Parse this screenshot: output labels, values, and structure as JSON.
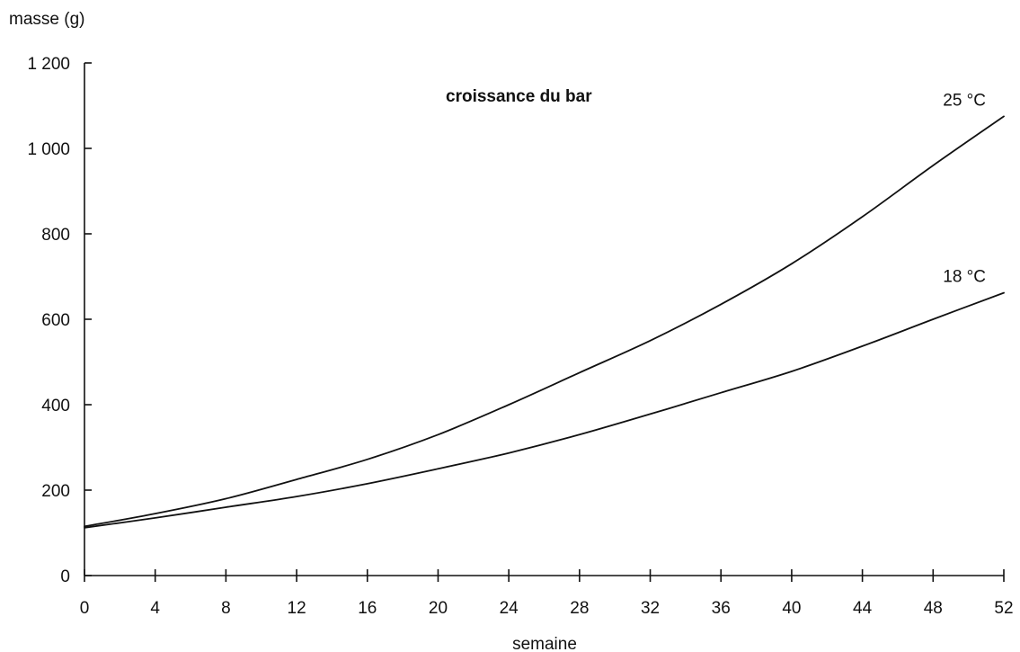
{
  "chart_data": {
    "type": "line",
    "title": "croissance du bar",
    "xlabel": "semaine",
    "ylabel": "masse (g)",
    "xlim": [
      0,
      52
    ],
    "ylim": [
      0,
      1200
    ],
    "grid": false,
    "legend": "none",
    "x_ticks": [
      0,
      4,
      8,
      12,
      16,
      20,
      24,
      28,
      32,
      36,
      40,
      44,
      48,
      52
    ],
    "x_tick_labels": [
      "0",
      "4",
      "8",
      "12",
      "16",
      "20",
      "24",
      "28",
      "32",
      "36",
      "40",
      "44",
      "48",
      "52"
    ],
    "y_ticks": [
      0,
      200,
      400,
      600,
      800,
      1000,
      1200
    ],
    "y_tick_labels": [
      "0",
      "200",
      "400",
      "600",
      "800",
      "1 000",
      "1 200"
    ],
    "series": [
      {
        "name": "25 °C",
        "color": "#111111",
        "x": [
          0,
          4,
          8,
          12,
          16,
          20,
          24,
          28,
          32,
          36,
          40,
          44,
          48,
          52
        ],
        "y": [
          115,
          145,
          180,
          225,
          272,
          330,
          400,
          475,
          550,
          635,
          730,
          840,
          960,
          1075
        ]
      },
      {
        "name": "18 °C",
        "color": "#111111",
        "x": [
          0,
          4,
          8,
          12,
          16,
          20,
          24,
          28,
          32,
          36,
          40,
          44,
          48,
          52
        ],
        "y": [
          112,
          135,
          160,
          185,
          215,
          250,
          287,
          330,
          378,
          428,
          478,
          537,
          600,
          662
        ]
      }
    ]
  }
}
